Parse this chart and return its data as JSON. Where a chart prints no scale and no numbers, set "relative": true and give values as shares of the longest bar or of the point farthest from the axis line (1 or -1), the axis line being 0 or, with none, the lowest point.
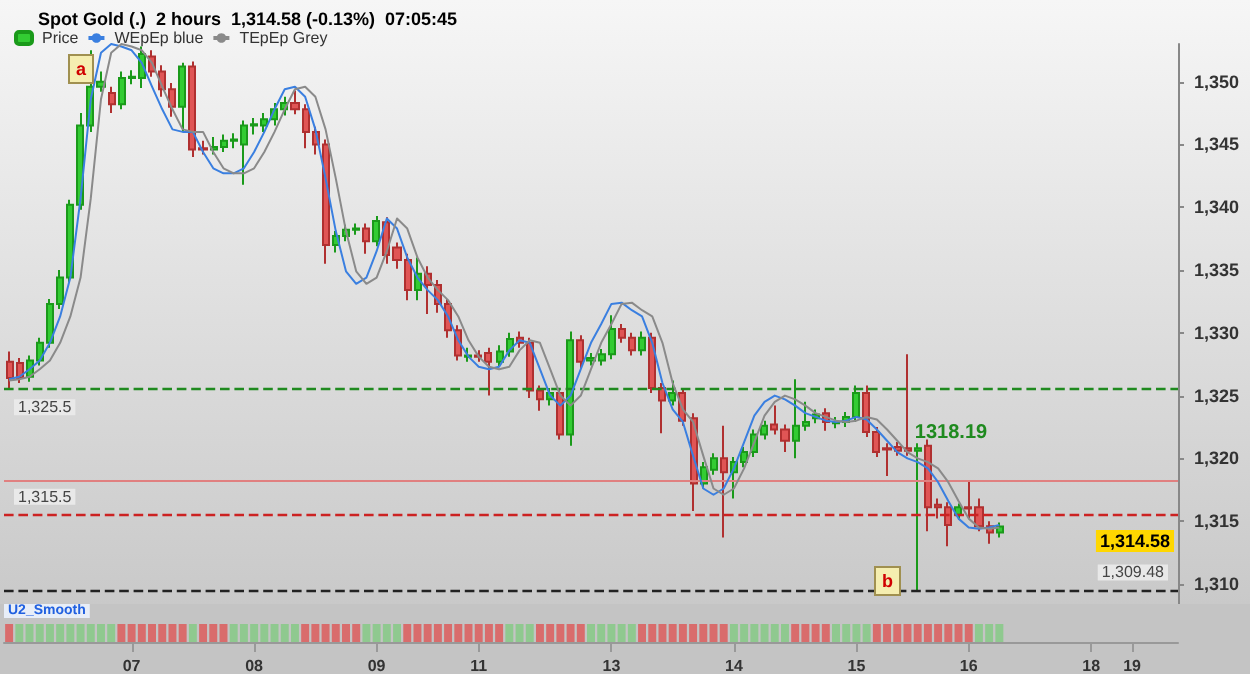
{
  "chart_data": [
    {
      "type": "candlestick",
      "title": "Spot Gold (.)  2 hours  1,314.58 (-0.13%)  07:05:45",
      "categories": [
        null,
        null,
        null,
        null,
        null,
        null,
        null,
        null,
        null,
        null,
        null,
        null,
        "07",
        null,
        null,
        null,
        null,
        null,
        null,
        null,
        null,
        null,
        null,
        null,
        "08",
        null,
        null,
        null,
        null,
        null,
        null,
        null,
        null,
        null,
        null,
        null,
        "09",
        null,
        null,
        null,
        null,
        null,
        null,
        null,
        null,
        null,
        "11",
        null,
        null,
        null,
        null,
        null,
        null,
        null,
        null,
        null,
        null,
        null,
        null,
        "13",
        null,
        null,
        null,
        null,
        null,
        null,
        null,
        null,
        null,
        null,
        null,
        "14",
        null,
        null,
        null,
        null,
        null,
        null,
        null,
        null,
        null,
        null,
        null,
        "15",
        null,
        null,
        null,
        null,
        null,
        null,
        null,
        null,
        null,
        null,
        "16",
        null,
        null,
        null,
        null,
        null,
        null,
        null,
        null,
        null,
        null,
        null,
        "18",
        null,
        null,
        null,
        "19",
        null,
        null,
        null,
        null
      ],
      "series": [
        {
          "name": "Price",
          "type": "candlestick",
          "ohlc": [
            [
              1327.7,
              1328.5,
              1325.5,
              1326.4
            ],
            [
              1327.6,
              1328,
              1326,
              1326.4
            ],
            [
              1326.5,
              1328.2,
              1326.1,
              1327.8
            ],
            [
              1327.8,
              1329.6,
              1327.4,
              1329.2
            ],
            [
              1329.2,
              1332.7,
              1328.8,
              1332.3
            ],
            [
              1332.3,
              1335,
              1331.9,
              1334.4
            ],
            [
              1334.4,
              1340.6,
              1334,
              1340.2
            ],
            [
              1340.2,
              1347.5,
              1339.8,
              1346.5
            ],
            [
              1346.5,
              1352.5,
              1346,
              1349.6
            ],
            [
              1349.6,
              1350.8,
              1349.2,
              1350
            ],
            [
              1349.1,
              1349.6,
              1347.5,
              1348.2
            ],
            [
              1348.2,
              1350.8,
              1347.8,
              1350.3
            ],
            [
              1350.3,
              1350.9,
              1349.8,
              1350.4
            ],
            [
              1350.3,
              1352.8,
              1349.5,
              1352.2
            ],
            [
              1352,
              1352.5,
              1350.4,
              1350.8
            ],
            [
              1350.8,
              1351.3,
              1348.8,
              1349.4
            ],
            [
              1349.4,
              1349.9,
              1347.2,
              1348
            ],
            [
              1348,
              1351.5,
              1346,
              1351.2
            ],
            [
              1351.2,
              1351.6,
              1344,
              1344.6
            ],
            [
              1344.7,
              1345.3,
              1344.2,
              1344.6
            ],
            [
              1344.6,
              1345.6,
              1344.2,
              1344.8
            ],
            [
              1344.8,
              1345.8,
              1344.4,
              1345.3
            ],
            [
              1345.3,
              1345.9,
              1344.7,
              1345.4
            ],
            [
              1345,
              1346.9,
              1341.8,
              1346.5
            ],
            [
              1346.5,
              1347.1,
              1345.8,
              1346.6
            ],
            [
              1346.5,
              1347.5,
              1346,
              1347
            ],
            [
              1347,
              1348.3,
              1346.5,
              1347.8
            ],
            [
              1347.8,
              1348.8,
              1347.3,
              1348.3
            ],
            [
              1348.3,
              1349.3,
              1347.4,
              1347.8
            ],
            [
              1347.8,
              1348.2,
              1344.7,
              1346
            ],
            [
              1346,
              1346.4,
              1344.2,
              1345
            ],
            [
              1345,
              1345.4,
              1335.5,
              1337
            ],
            [
              1337,
              1338.1,
              1336.4,
              1337.7
            ],
            [
              1337.7,
              1338.6,
              1337.3,
              1338.2
            ],
            [
              1338.2,
              1338.7,
              1337.8,
              1338.3
            ],
            [
              1338.3,
              1338.7,
              1336.3,
              1337.3
            ],
            [
              1337.3,
              1339.3,
              1336.9,
              1338.9
            ],
            [
              1338.8,
              1339.2,
              1335.5,
              1336.2
            ],
            [
              1336.8,
              1337.2,
              1335.1,
              1335.8
            ],
            [
              1335.8,
              1336.3,
              1332.6,
              1333.4
            ],
            [
              1333.4,
              1336,
              1332.6,
              1334.7
            ],
            [
              1334.7,
              1335.3,
              1331.5,
              1333.8
            ],
            [
              1333.8,
              1334.2,
              1331.6,
              1332.3
            ],
            [
              1332.3,
              1332.7,
              1329.6,
              1330.2
            ],
            [
              1330.2,
              1330.6,
              1327.8,
              1328.2
            ],
            [
              1328.1,
              1328.8,
              1327.7,
              1328.2
            ],
            [
              1328.2,
              1328.6,
              1327.7,
              1328.1
            ],
            [
              1328.4,
              1328.8,
              1325,
              1327.7
            ],
            [
              1327.7,
              1329,
              1327.3,
              1328.5
            ],
            [
              1328.5,
              1330,
              1328.1,
              1329.5
            ],
            [
              1329.6,
              1330.1,
              1328.8,
              1329.2
            ],
            [
              1329.2,
              1329.6,
              1324.8,
              1325.4
            ],
            [
              1325.4,
              1325.8,
              1323.8,
              1324.7
            ],
            [
              1324.7,
              1325.6,
              1324.2,
              1325.2
            ],
            [
              1325.2,
              1325.6,
              1321.5,
              1321.9
            ],
            [
              1321.9,
              1330.1,
              1321,
              1329.4
            ],
            [
              1329.4,
              1329.8,
              1327.2,
              1327.7
            ],
            [
              1327.8,
              1328.4,
              1327.4,
              1328
            ],
            [
              1327.8,
              1328.7,
              1327.4,
              1328.3
            ],
            [
              1328.3,
              1331.4,
              1327.9,
              1330.3
            ],
            [
              1330.3,
              1330.7,
              1329.2,
              1329.6
            ],
            [
              1329.6,
              1330,
              1328.2,
              1328.6
            ],
            [
              1328.6,
              1330.1,
              1328.2,
              1329.6
            ],
            [
              1329.6,
              1330,
              1325.2,
              1325.6
            ],
            [
              1325.6,
              1326,
              1322,
              1324.6
            ],
            [
              1324.6,
              1326.2,
              1324.2,
              1325.2
            ],
            [
              1325.2,
              1325.6,
              1322.6,
              1323
            ],
            [
              1323.2,
              1323.6,
              1315.8,
              1318
            ],
            [
              1318,
              1319.7,
              1317.6,
              1319.3
            ],
            [
              1319.1,
              1320.4,
              1318.7,
              1320
            ],
            [
              1320,
              1322.6,
              1313.7,
              1318.9
            ],
            [
              1318.9,
              1320.1,
              1316.8,
              1319.7
            ],
            [
              1319.7,
              1320.9,
              1319.3,
              1320.5
            ],
            [
              1320.5,
              1322.3,
              1320.1,
              1321.9
            ],
            [
              1321.9,
              1323,
              1321.5,
              1322.6
            ],
            [
              1322.7,
              1324.2,
              1321.9,
              1322.3
            ],
            [
              1322.3,
              1322.7,
              1320.5,
              1321.4
            ],
            [
              1321.4,
              1326.3,
              1320,
              1322.6
            ],
            [
              1322.6,
              1324.5,
              1322.2,
              1322.9
            ],
            [
              1323.2,
              1323.9,
              1322.8,
              1323.5
            ],
            [
              1323.6,
              1324,
              1322.2,
              1322.9
            ],
            [
              1322.8,
              1323.3,
              1322.4,
              1322.9
            ],
            [
              1322.9,
              1323.7,
              1322.5,
              1323.3
            ],
            [
              1323.3,
              1325.8,
              1322.9,
              1325.2
            ],
            [
              1325.2,
              1325.8,
              1321.7,
              1322.1
            ],
            [
              1322.1,
              1322.5,
              1320.1,
              1320.5
            ],
            [
              1320.8,
              1321.2,
              1318.6,
              1320.7
            ],
            [
              1320.9,
              1321.3,
              1320.2,
              1320.6
            ],
            [
              1320.8,
              1328.3,
              1320.2,
              1320.6
            ],
            [
              1320.6,
              1321.2,
              1309.4,
              1320.8
            ],
            [
              1321,
              1321.5,
              1314.2,
              1316.1
            ],
            [
              1316.3,
              1316.8,
              1315.2,
              1316.1
            ],
            [
              1316.1,
              1316.5,
              1313,
              1314.7
            ],
            [
              1315.5,
              1316.4,
              1315.1,
              1316.1
            ],
            [
              1316.1,
              1318.2,
              1315.2,
              1316
            ],
            [
              1316.1,
              1316.8,
              1314.2,
              1314.6
            ],
            [
              1314.6,
              1315,
              1313.2,
              1314.1
            ],
            [
              1314.1,
              1314.9,
              1313.7,
              1314.58
            ],
            null,
            null,
            null,
            null,
            null,
            null,
            null,
            null,
            null,
            null,
            null,
            null,
            null,
            null,
            null,
            null,
            null
          ]
        },
        {
          "name": "WEpEp blue",
          "type": "line",
          "color": "#3a7fe0",
          "values": [
            1326.3,
            1326.5,
            1327.1,
            1327.8,
            1329.2,
            1331.3,
            1334.4,
            1340.7,
            1348.6,
            1352.3,
            1353,
            1352.8,
            1352.5,
            1351.5,
            1349.6,
            1347.8,
            1346.2,
            1346,
            1346,
            1344.4,
            1343.1,
            1342.7,
            1342.7,
            1343.1,
            1344.4,
            1346,
            1347.8,
            1349.4,
            1349.6,
            1348.8,
            1346.2,
            1342.3,
            1338.1,
            1334.9,
            1333.9,
            1334.4,
            1336.5,
            1339.1,
            1338.3,
            1336,
            1334.4,
            1333.4,
            1332.6,
            1331.3,
            1329.4,
            1328.1,
            1327.3,
            1327.1,
            1327.3,
            1328.6,
            1329.4,
            1329.2,
            1327.1,
            1325,
            1324.2,
            1325,
            1327.1,
            1329.2,
            1330.7,
            1332.3,
            1332.4,
            1331.8,
            1331.3,
            1329.2,
            1326,
            1323.9,
            1322.9,
            1320.2,
            1317.6,
            1317.1,
            1317.6,
            1319.2,
            1321.3,
            1323.4,
            1324.5,
            1325,
            1324.7,
            1324.2,
            1323.6,
            1323.3,
            1323,
            1322.9,
            1323,
            1323.3,
            1323.1,
            1322.3,
            1321.4,
            1320.5,
            1320,
            1319.7,
            1319.2,
            1318.1,
            1316.6,
            1315.2,
            1314.5,
            1314.4,
            1314.5,
            1314.7,
            null,
            null,
            null,
            null,
            null,
            null,
            null,
            null,
            null,
            null,
            null,
            null,
            null,
            null,
            null,
            null,
            null
          ]
        },
        {
          "name": "TEpEp Grey",
          "type": "line",
          "color": "#8a8a8a",
          "values": [
            1326.2,
            1326.3,
            1326.5,
            1327.1,
            1327.8,
            1329.2,
            1331.3,
            1334.4,
            1340.7,
            1348.6,
            1352.3,
            1353,
            1352.8,
            1352.5,
            1351.5,
            1349.6,
            1347.8,
            1346.2,
            1346,
            1346,
            1344.4,
            1343.1,
            1342.7,
            1342.7,
            1343.1,
            1344.4,
            1346,
            1347.8,
            1349.4,
            1349.6,
            1348.8,
            1346.2,
            1342.3,
            1338.1,
            1334.9,
            1333.9,
            1334.4,
            1336.5,
            1339.1,
            1338.3,
            1336,
            1334.4,
            1333.4,
            1332.6,
            1331.3,
            1329.4,
            1328.1,
            1327.3,
            1327.1,
            1327.3,
            1328.6,
            1329.4,
            1329.2,
            1327.1,
            1325,
            1324.2,
            1325,
            1327.1,
            1329.2,
            1330.7,
            1332.3,
            1332.4,
            1331.8,
            1331.3,
            1329.2,
            1326,
            1323.9,
            1322.9,
            1320.2,
            1317.6,
            1317.1,
            1317.6,
            1319.2,
            1321.3,
            1323.4,
            1324.5,
            1325,
            1324.7,
            1324.2,
            1323.6,
            1323.3,
            1323,
            1322.9,
            1323,
            1323.3,
            1323.1,
            1322.3,
            1321.4,
            1320.5,
            1320,
            1319.7,
            1319.2,
            1318.1,
            1316.6,
            1315.2,
            1314.5,
            1314.4,
            1314.5,
            null,
            null,
            null,
            null,
            null,
            null,
            null,
            null,
            null,
            null,
            null,
            null,
            null,
            null,
            null,
            null,
            null
          ]
        }
      ],
      "ylim": [
        1308.4,
        1353
      ],
      "yticks": [
        {
          "value": 1310,
          "label": "1,310"
        },
        {
          "value": 1315,
          "label": "1,315"
        },
        {
          "value": 1320,
          "label": "1,320"
        },
        {
          "value": 1325,
          "label": "1,325"
        },
        {
          "value": 1330,
          "label": "1,330"
        },
        {
          "value": 1335,
          "label": "1,335"
        },
        {
          "value": 1340,
          "label": "1,340"
        },
        {
          "value": 1345,
          "label": "1,345"
        },
        {
          "value": 1350,
          "label": "1,350"
        }
      ],
      "ref_lines": [
        {
          "axis": "y",
          "value": 1325.5,
          "label": "1,325.5",
          "color": "#1f8a1f",
          "line_style": "dashed"
        },
        {
          "axis": "y",
          "value": 1315.5,
          "label": "1,315.5",
          "color": "#cc2222",
          "line_style": "dashed"
        },
        {
          "axis": "y",
          "value": 1309.48,
          "label": "1,309.48",
          "color": "#222222",
          "line_style": "dashed"
        },
        {
          "axis": "y",
          "value": 1318.19,
          "label": "1318.19",
          "color": "#e08080",
          "line_style": "solid"
        }
      ],
      "annotations": [
        "a",
        "b",
        "1,314.58"
      ],
      "legend": "top left",
      "tick_labels": "y"
    },
    {
      "type": "bar",
      "title": "U2_Smooth",
      "relative": true,
      "tick_labels": "x",
      "categories": [
        null,
        null,
        null,
        null,
        null,
        null,
        null,
        null,
        null,
        null,
        null,
        null,
        "07",
        null,
        null,
        null,
        null,
        null,
        null,
        null,
        null,
        null,
        null,
        null,
        "08",
        null,
        null,
        null,
        null,
        null,
        null,
        null,
        null,
        null,
        null,
        null,
        "09",
        null,
        null,
        null,
        null,
        null,
        null,
        null,
        null,
        null,
        "11",
        null,
        null,
        null,
        null,
        null,
        null,
        null,
        null,
        null,
        null,
        null,
        null,
        "13",
        null,
        null,
        null,
        null,
        null,
        null,
        null,
        null,
        null,
        null,
        null,
        "14",
        null,
        null,
        null,
        null,
        null,
        null,
        null,
        null,
        null,
        null,
        null,
        "15",
        null,
        null,
        null,
        null,
        null,
        null,
        null,
        null,
        null,
        null,
        "16",
        null,
        null,
        null,
        null,
        null,
        null,
        null,
        null,
        null,
        null,
        null,
        "18",
        null,
        null,
        null,
        "19",
        null,
        null,
        null,
        null
      ],
      "values": [
        1,
        1,
        1,
        1,
        1,
        1,
        1,
        1,
        1,
        1,
        1,
        1,
        1,
        1,
        1,
        1,
        1,
        1,
        1,
        1,
        1,
        1,
        1,
        1,
        1,
        1,
        1,
        1,
        1,
        1,
        1,
        1,
        1,
        1,
        1,
        1,
        1,
        1,
        1,
        1,
        1,
        1,
        1,
        1,
        1,
        1,
        1,
        1,
        1,
        1,
        1,
        1,
        1,
        1,
        1,
        1,
        1,
        1,
        1,
        1,
        1,
        1,
        1,
        1,
        1,
        1,
        1,
        1,
        1,
        1,
        1,
        1,
        1,
        1,
        1,
        1,
        1,
        1,
        1,
        1,
        1,
        1,
        1,
        1,
        1,
        1,
        1,
        1,
        1,
        1,
        1,
        1,
        1,
        1,
        1,
        1,
        1,
        1,
        null,
        null,
        null,
        null,
        null,
        null,
        null,
        null,
        null,
        null,
        null,
        null,
        null,
        null,
        null,
        null,
        null
      ],
      "colors": [
        "#d96c6c",
        "#8fc98f",
        "#8fc98f",
        "#8fc98f",
        "#8fc98f",
        "#8fc98f",
        "#8fc98f",
        "#8fc98f",
        "#8fc98f",
        "#8fc98f",
        "#8fc98f",
        "#d96c6c",
        "#d96c6c",
        "#d96c6c",
        "#d96c6c",
        "#d96c6c",
        "#d96c6c",
        "#d96c6c",
        "#8fc98f",
        "#d96c6c",
        "#d96c6c",
        "#d96c6c",
        "#8fc98f",
        "#8fc98f",
        "#8fc98f",
        "#8fc98f",
        "#8fc98f",
        "#8fc98f",
        "#8fc98f",
        "#d96c6c",
        "#d96c6c",
        "#d96c6c",
        "#d96c6c",
        "#d96c6c",
        "#d96c6c",
        "#8fc98f",
        "#8fc98f",
        "#8fc98f",
        "#8fc98f",
        "#d96c6c",
        "#d96c6c",
        "#d96c6c",
        "#d96c6c",
        "#d96c6c",
        "#d96c6c",
        "#d96c6c",
        "#d96c6c",
        "#d96c6c",
        "#d96c6c",
        "#8fc98f",
        "#8fc98f",
        "#8fc98f",
        "#d96c6c",
        "#d96c6c",
        "#d96c6c",
        "#d96c6c",
        "#d96c6c",
        "#8fc98f",
        "#8fc98f",
        "#8fc98f",
        "#8fc98f",
        "#8fc98f",
        "#d96c6c",
        "#d96c6c",
        "#d96c6c",
        "#d96c6c",
        "#d96c6c",
        "#d96c6c",
        "#d96c6c",
        "#d96c6c",
        "#d96c6c",
        "#8fc98f",
        "#8fc98f",
        "#8fc98f",
        "#8fc98f",
        "#8fc98f",
        "#8fc98f",
        "#d96c6c",
        "#d96c6c",
        "#d96c6c",
        "#d96c6c",
        "#8fc98f",
        "#8fc98f",
        "#8fc98f",
        "#8fc98f",
        "#d96c6c",
        "#d96c6c",
        "#d96c6c",
        "#d96c6c",
        "#d96c6c",
        "#d96c6c",
        "#d96c6c",
        "#d96c6c",
        "#d96c6c",
        "#d96c6c",
        "#8fc98f",
        "#8fc98f",
        "#8fc98f",
        null,
        null,
        null,
        null,
        null,
        null,
        null,
        null,
        null,
        null,
        null,
        null,
        null,
        null,
        null,
        null,
        null
      ]
    }
  ]
}
